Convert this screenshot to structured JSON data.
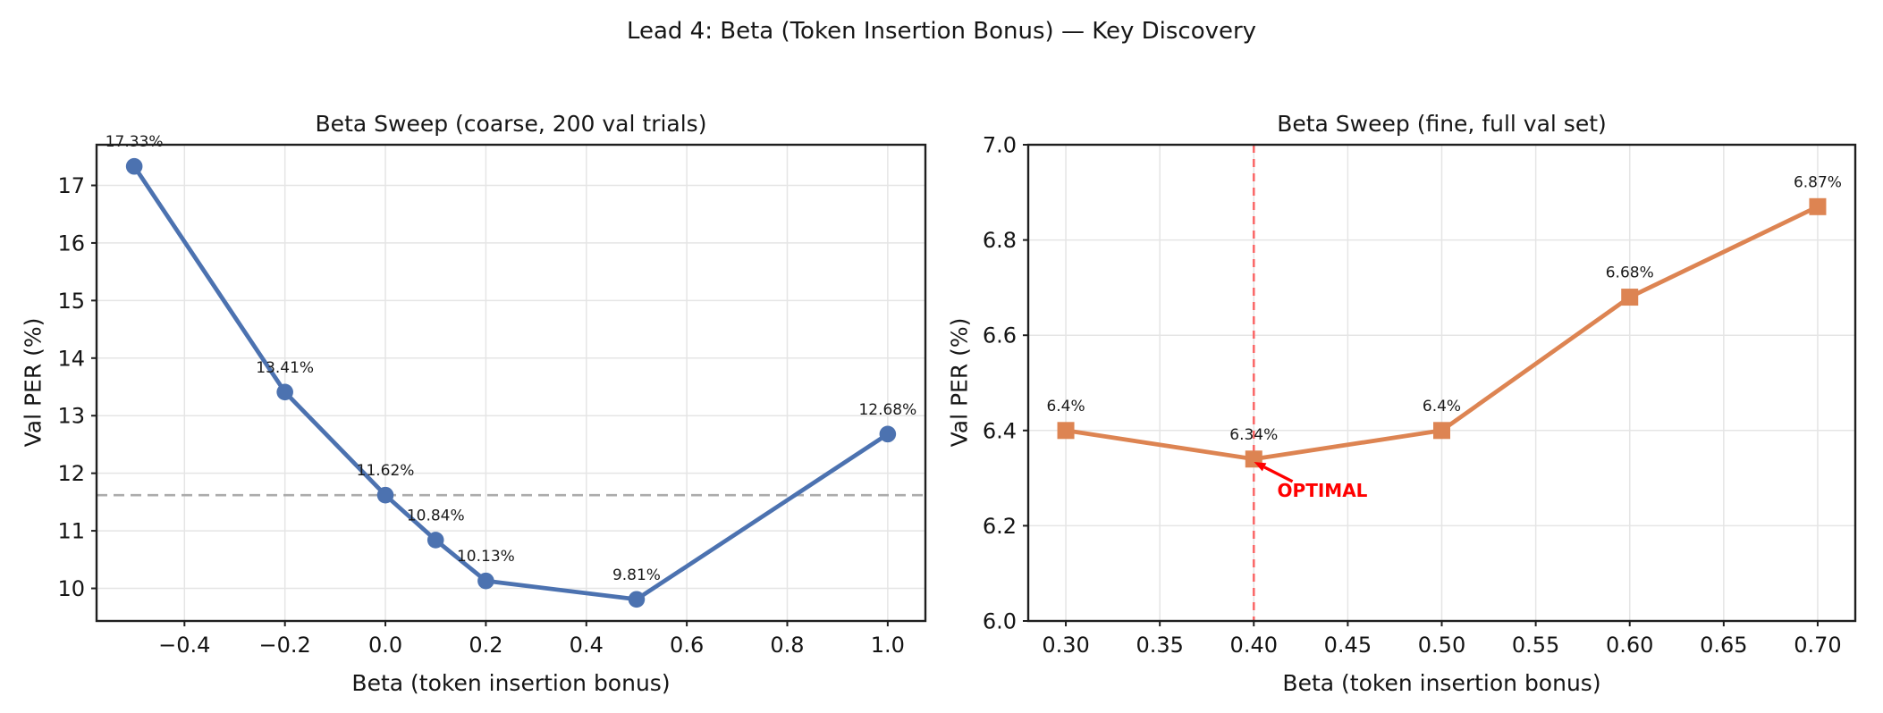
{
  "suptitle": "Lead 4: Beta (Token Insertion Bonus) — Key Discovery",
  "chart_data": [
    {
      "type": "line",
      "title": "Beta Sweep (coarse, 200 val trials)",
      "xlabel": "Beta (token insertion bonus)",
      "ylabel": "Val PER (%)",
      "x": [
        -0.5,
        -0.2,
        0.0,
        0.1,
        0.2,
        0.5,
        1.0
      ],
      "y": [
        17.33,
        13.41,
        11.62,
        10.84,
        10.13,
        9.81,
        12.68
      ],
      "point_labels": [
        "17.33%",
        "13.41%",
        "11.62%",
        "10.84%",
        "10.13%",
        "9.81%",
        "12.68%"
      ],
      "xlim": [
        -0.575,
        1.075
      ],
      "ylim": [
        9.434,
        17.706
      ],
      "xticks": {
        "values": [
          -0.4,
          -0.2,
          0.0,
          0.2,
          0.4,
          0.6,
          0.8,
          1.0
        ],
        "labels": [
          "−0.4",
          "−0.2",
          "0.0",
          "0.2",
          "0.4",
          "0.6",
          "0.8",
          "1.0"
        ]
      },
      "yticks": {
        "values": [
          10,
          11,
          12,
          13,
          14,
          15,
          16,
          17
        ],
        "labels": [
          "10",
          "11",
          "12",
          "13",
          "14",
          "15",
          "16",
          "17"
        ]
      },
      "grid": true,
      "line_color": "#4C72B0",
      "marker": "circle",
      "hline": {
        "y": 11.62,
        "color": "#ababab",
        "style": "dashed"
      }
    },
    {
      "type": "line",
      "title": "Beta Sweep (fine, full val set)",
      "xlabel": "Beta (token insertion bonus)",
      "ylabel": "Val PER (%)",
      "x": [
        0.3,
        0.4,
        0.5,
        0.6,
        0.7
      ],
      "y": [
        6.4,
        6.34,
        6.4,
        6.68,
        6.87
      ],
      "point_labels": [
        "6.4%",
        "6.34%",
        "6.4%",
        "6.68%",
        "6.87%"
      ],
      "xlim": [
        0.28,
        0.72
      ],
      "ylim": [
        6.0,
        7.0
      ],
      "xticks": {
        "values": [
          0.3,
          0.35,
          0.4,
          0.45,
          0.5,
          0.55,
          0.6,
          0.65,
          0.7
        ],
        "labels": [
          "0.30",
          "0.35",
          "0.40",
          "0.45",
          "0.50",
          "0.55",
          "0.60",
          "0.65",
          "0.70"
        ]
      },
      "yticks": {
        "values": [
          6.0,
          6.2,
          6.4,
          6.6,
          6.8,
          7.0
        ],
        "labels": [
          "6.0",
          "6.2",
          "6.4",
          "6.6",
          "6.8",
          "7.0"
        ]
      },
      "grid": true,
      "line_color": "#DD8452",
      "marker": "square",
      "vline": {
        "x": 0.4,
        "color": "#fa6a6a",
        "style": "dashed"
      },
      "annotation": {
        "text": "OPTIMAL",
        "color": "#ff0000",
        "point_xy": [
          0.4,
          6.34
        ],
        "text_xy": [
          0.4125,
          6.261
        ],
        "arrow_tail_xy": [
          0.4206,
          6.293
        ],
        "arrow_tip_xy": [
          0.4001,
          6.334
        ]
      }
    }
  ]
}
